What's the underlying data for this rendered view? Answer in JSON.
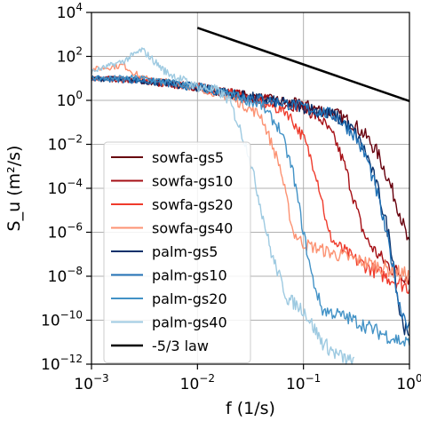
{
  "chart_data": {
    "type": "line",
    "title": "",
    "xlabel": "f (1/s)",
    "ylabel": "S_u (m²/s)",
    "xscale": "log",
    "yscale": "log",
    "xlim": [
      0.001,
      1
    ],
    "ylim": [
      1e-12,
      10000
    ],
    "grid": true,
    "legend_position": "lower-left",
    "x_ticks": [
      {
        "value": 0.001,
        "base": "10",
        "exp": "−3"
      },
      {
        "value": 0.01,
        "base": "10",
        "exp": "−2"
      },
      {
        "value": 0.1,
        "base": "10",
        "exp": "−1"
      },
      {
        "value": 1,
        "base": "10",
        "exp": "0"
      }
    ],
    "y_ticks": [
      {
        "value": 1e-12,
        "base": "10",
        "exp": "−12"
      },
      {
        "value": 1e-10,
        "base": "10",
        "exp": "−10"
      },
      {
        "value": 1e-08,
        "base": "10",
        "exp": "−8"
      },
      {
        "value": 1e-06,
        "base": "10",
        "exp": "−6"
      },
      {
        "value": 0.0001,
        "base": "10",
        "exp": "−4"
      },
      {
        "value": 0.01,
        "base": "10",
        "exp": "−2"
      },
      {
        "value": 1,
        "base": "10",
        "exp": "0"
      },
      {
        "value": 100,
        "base": "10",
        "exp": "2"
      },
      {
        "value": 10000,
        "base": "10",
        "exp": "4"
      }
    ],
    "series": [
      {
        "name": "sowfa-gs5",
        "color": "#67000d",
        "x": [
          0.001,
          0.003,
          0.01,
          0.03,
          0.1,
          0.2,
          0.3,
          0.4,
          0.5,
          0.6,
          0.8,
          1.0
        ],
        "y": [
          10,
          8,
          4,
          1.5,
          0.6,
          0.25,
          0.08,
          0.02,
          0.004,
          0.0005,
          1e-05,
          2e-07
        ]
      },
      {
        "name": "sowfa-gs10",
        "color": "#a50f15",
        "x": [
          0.001,
          0.003,
          0.01,
          0.03,
          0.1,
          0.15,
          0.2,
          0.25,
          0.3,
          0.35,
          0.4,
          0.5,
          0.7,
          1.0
        ],
        "y": [
          10,
          8,
          4,
          1.5,
          0.5,
          0.12,
          0.015,
          0.0008,
          3e-05,
          2e-06,
          4e-07,
          1e-07,
          2e-08,
          8e-09
        ]
      },
      {
        "name": "sowfa-gs20",
        "color": "#ef3b2c",
        "x": [
          0.001,
          0.003,
          0.01,
          0.03,
          0.07,
          0.1,
          0.13,
          0.15,
          0.17,
          0.2,
          0.3,
          0.5,
          1.0
        ],
        "y": [
          10,
          8,
          4,
          1.3,
          0.3,
          0.02,
          0.0006,
          3e-05,
          1e-06,
          3e-07,
          6e-08,
          1.5e-08,
          3e-09
        ]
      },
      {
        "name": "sowfa-gs40",
        "color": "#fc9272",
        "x": [
          0.001,
          0.002,
          0.003,
          0.01,
          0.02,
          0.04,
          0.06,
          0.08,
          0.1,
          0.2,
          0.5,
          1.0
        ],
        "y": [
          25,
          40,
          10,
          4,
          1.5,
          0.2,
          0.001,
          1e-06,
          3e-07,
          1e-07,
          3e-08,
          1e-08
        ]
      },
      {
        "name": "palm-gs5",
        "color": "#08306b",
        "x": [
          0.001,
          0.003,
          0.01,
          0.03,
          0.1,
          0.2,
          0.3,
          0.4,
          0.5,
          0.6,
          0.7,
          0.8,
          1.0
        ],
        "y": [
          10,
          8,
          4,
          1.5,
          0.5,
          0.2,
          0.04,
          0.003,
          0.0001,
          3e-06,
          8e-08,
          3e-10,
          1e-11
        ]
      },
      {
        "name": "palm-gs10",
        "color": "#2171b5",
        "x": [
          0.001,
          0.003,
          0.01,
          0.03,
          0.1,
          0.2,
          0.3,
          0.4,
          0.5,
          0.6,
          0.7,
          0.8,
          1.0
        ],
        "y": [
          10,
          8,
          4,
          1.5,
          0.5,
          0.2,
          0.03,
          0.002,
          5e-05,
          1e-06,
          3e-08,
          5e-10,
          5e-11
        ]
      },
      {
        "name": "palm-gs20",
        "color": "#4292c6",
        "x": [
          0.001,
          0.003,
          0.01,
          0.02,
          0.04,
          0.06,
          0.08,
          0.1,
          0.12,
          0.15,
          0.2,
          0.3,
          0.5,
          1.0
        ],
        "y": [
          10,
          10,
          4,
          2,
          0.6,
          0.05,
          0.0005,
          1e-06,
          1e-08,
          3e-10,
          2e-10,
          1e-10,
          3e-11,
          8e-12
        ]
      },
      {
        "name": "palm-gs40",
        "color": "#9ecae1",
        "x": [
          0.001,
          0.002,
          0.003,
          0.005,
          0.01,
          0.015,
          0.02,
          0.03,
          0.05,
          0.07,
          0.1,
          0.15,
          0.2,
          0.3
        ],
        "y": [
          20,
          60,
          200,
          20,
          4,
          3,
          1,
          0.005,
          1e-07,
          1e-09,
          3e-10,
          1e-11,
          3e-12,
          1e-12
        ]
      },
      {
        "name": "-5/3 law",
        "color": "#000000",
        "x": [
          0.01,
          1.0
        ],
        "y": [
          2000,
          0.93
        ]
      }
    ]
  }
}
